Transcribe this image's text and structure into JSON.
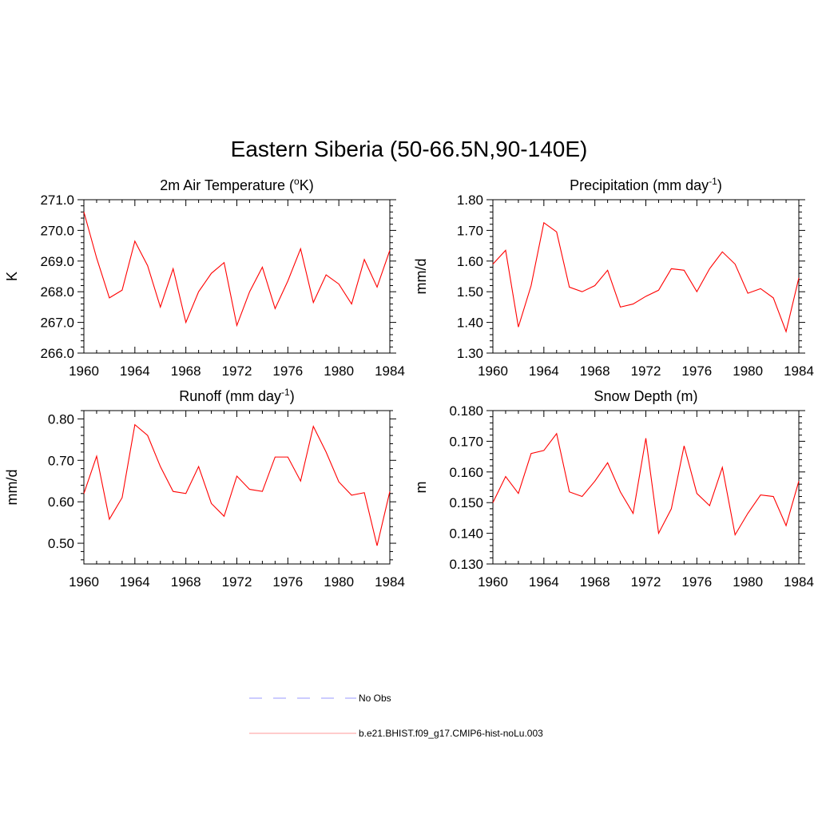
{
  "figure": {
    "title": "Eastern Siberia (50-66.5N,90-140E)"
  },
  "chart_data": [
    {
      "type": "line",
      "title_main": "2m Air Temperature (",
      "title_sup": "o",
      "title_end": "K)",
      "xlabel": "",
      "ylabel": "K",
      "xlim": [
        1960,
        1984
      ],
      "ylim": [
        266.0,
        271.0
      ],
      "xticks": [
        1960,
        1964,
        1968,
        1972,
        1976,
        1980,
        1984
      ],
      "yticks": [
        266.0,
        267.0,
        268.0,
        269.0,
        270.0,
        271.0
      ],
      "ytick_labels": [
        "266.0",
        "267.0",
        "268.0",
        "269.0",
        "270.0",
        "271.0"
      ],
      "series": [
        {
          "color": "#ff0000",
          "x": [
            1960,
            1961,
            1962,
            1963,
            1964,
            1965,
            1966,
            1967,
            1968,
            1969,
            1970,
            1971,
            1972,
            1973,
            1974,
            1975,
            1976,
            1977,
            1978,
            1979,
            1980,
            1981,
            1982,
            1983,
            1984
          ],
          "values": [
            270.6,
            269.1,
            267.8,
            268.05,
            269.65,
            268.85,
            267.5,
            268.75,
            267.0,
            268.0,
            268.6,
            268.95,
            266.9,
            268.0,
            268.8,
            267.45,
            268.35,
            269.4,
            267.65,
            268.55,
            268.25,
            267.6,
            269.05,
            268.15,
            269.35
          ]
        }
      ]
    },
    {
      "type": "line",
      "title_main": "Precipitation (mm day",
      "title_sup": "-1",
      "title_end": ")",
      "xlabel": "",
      "ylabel": "mm/d",
      "xlim": [
        1960,
        1984
      ],
      "ylim": [
        1.3,
        1.8
      ],
      "xticks": [
        1960,
        1964,
        1968,
        1972,
        1976,
        1980,
        1984
      ],
      "yticks": [
        1.3,
        1.4,
        1.5,
        1.6,
        1.7,
        1.8
      ],
      "ytick_labels": [
        "1.30",
        "1.40",
        "1.50",
        "1.60",
        "1.70",
        "1.80"
      ],
      "series": [
        {
          "color": "#ff0000",
          "x": [
            1960,
            1961,
            1962,
            1963,
            1964,
            1965,
            1966,
            1967,
            1968,
            1969,
            1970,
            1971,
            1972,
            1973,
            1974,
            1975,
            1976,
            1977,
            1978,
            1979,
            1980,
            1981,
            1982,
            1983,
            1984
          ],
          "values": [
            1.59,
            1.635,
            1.385,
            1.52,
            1.725,
            1.695,
            1.515,
            1.5,
            1.52,
            1.57,
            1.45,
            1.46,
            1.485,
            1.505,
            1.575,
            1.57,
            1.5,
            1.575,
            1.63,
            1.59,
            1.495,
            1.51,
            1.48,
            1.37,
            1.545
          ]
        }
      ]
    },
    {
      "type": "line",
      "title_main": "Runoff (mm day",
      "title_sup": "-1",
      "title_end": ")",
      "xlabel": "",
      "ylabel": "mm/d",
      "xlim": [
        1960,
        1984
      ],
      "ylim": [
        0.45,
        0.82
      ],
      "xticks": [
        1960,
        1964,
        1968,
        1972,
        1976,
        1980,
        1984
      ],
      "yticks": [
        0.5,
        0.6,
        0.7,
        0.8
      ],
      "ytick_labels": [
        "0.50",
        "0.60",
        "0.70",
        "0.80"
      ],
      "series": [
        {
          "color": "#ff0000",
          "x": [
            1960,
            1961,
            1962,
            1963,
            1964,
            1965,
            1966,
            1967,
            1968,
            1969,
            1970,
            1971,
            1972,
            1973,
            1974,
            1975,
            1976,
            1977,
            1978,
            1979,
            1980,
            1981,
            1982,
            1983,
            1984
          ],
          "values": [
            0.62,
            0.71,
            0.558,
            0.61,
            0.786,
            0.76,
            0.685,
            0.625,
            0.62,
            0.685,
            0.596,
            0.565,
            0.662,
            0.63,
            0.625,
            0.708,
            0.708,
            0.65,
            0.782,
            0.72,
            0.648,
            0.616,
            0.622,
            0.494,
            0.625
          ]
        }
      ]
    },
    {
      "type": "line",
      "title_main": "Snow Depth (m)",
      "title_sup": "",
      "title_end": "",
      "xlabel": "",
      "ylabel": "m",
      "xlim": [
        1960,
        1984
      ],
      "ylim": [
        0.13,
        0.18
      ],
      "xticks": [
        1960,
        1964,
        1968,
        1972,
        1976,
        1980,
        1984
      ],
      "yticks": [
        0.13,
        0.14,
        0.15,
        0.16,
        0.17,
        0.18
      ],
      "ytick_labels": [
        "0.130",
        "0.140",
        "0.150",
        "0.160",
        "0.170",
        "0.180"
      ],
      "series": [
        {
          "color": "#ff0000",
          "x": [
            1960,
            1961,
            1962,
            1963,
            1964,
            1965,
            1966,
            1967,
            1968,
            1969,
            1970,
            1971,
            1972,
            1973,
            1974,
            1975,
            1976,
            1977,
            1978,
            1979,
            1980,
            1981,
            1982,
            1983,
            1984
          ],
          "values": [
            0.15,
            0.1585,
            0.153,
            0.166,
            0.167,
            0.1725,
            0.1535,
            0.152,
            0.157,
            0.163,
            0.1535,
            0.1465,
            0.171,
            0.14,
            0.148,
            0.1685,
            0.153,
            0.149,
            0.1615,
            0.1395,
            0.1465,
            0.1525,
            0.152,
            0.1425,
            0.157
          ]
        }
      ]
    }
  ],
  "legend": {
    "items": [
      {
        "label": "No Obs",
        "color": "#9999ff",
        "style": "dashed"
      },
      {
        "label": "b.e21.BHIST.f09_g17.CMIP6-hist-noLu.003",
        "color": "#ff0000",
        "style": "solid"
      }
    ]
  }
}
